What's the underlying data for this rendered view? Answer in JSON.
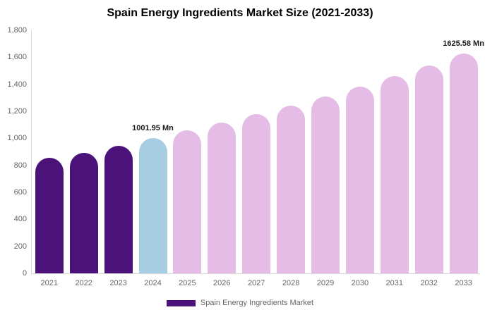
{
  "title": "Spain Energy Ingredients Market Size (2021-2033)",
  "legend": {
    "label": "Spain Energy Ingredients Market",
    "swatch_color": "#4b1279"
  },
  "colors": {
    "historical_bar": "#4b1279",
    "base_year_bar": "#a6cde2",
    "forecast_bar": "#e4bce6",
    "axis_line": "#d9d9d9",
    "axis_label": "#666666",
    "title_text": "#000000",
    "data_label_text": "#1a1a1a",
    "background": "#ffffff"
  },
  "chart_data": {
    "type": "bar",
    "title": "Spain Energy Ingredients Market Size (2021-2033)",
    "xlabel": "",
    "ylabel": "",
    "categories": [
      "2021",
      "2022",
      "2023",
      "2024",
      "2025",
      "2026",
      "2027",
      "2028",
      "2029",
      "2030",
      "2031",
      "2032",
      "2033"
    ],
    "values": [
      855,
      890,
      945,
      1001.95,
      1057,
      1116,
      1178,
      1243,
      1311,
      1384,
      1460,
      1541,
      1625.58
    ],
    "bar_colors": [
      "#4b1279",
      "#4b1279",
      "#4b1279",
      "#a6cde2",
      "#e4bce6",
      "#e4bce6",
      "#e4bce6",
      "#e4bce6",
      "#e4bce6",
      "#e4bce6",
      "#e4bce6",
      "#e4bce6",
      "#e4bce6"
    ],
    "point_labels": {
      "2024": "1001.95 Mn",
      "2033": "1625.58 Mn"
    },
    "ylim": [
      0,
      1800
    ],
    "ytick_step": 200,
    "ytick_labels": [
      "0",
      "200",
      "400",
      "600",
      "800",
      "1,000",
      "1,200",
      "1,400",
      "1,600",
      "1,800"
    ],
    "grid": false,
    "legend_position": "bottom-center",
    "legend_entries": [
      "Spain Energy Ingredients Market"
    ],
    "unit": "Mn"
  }
}
